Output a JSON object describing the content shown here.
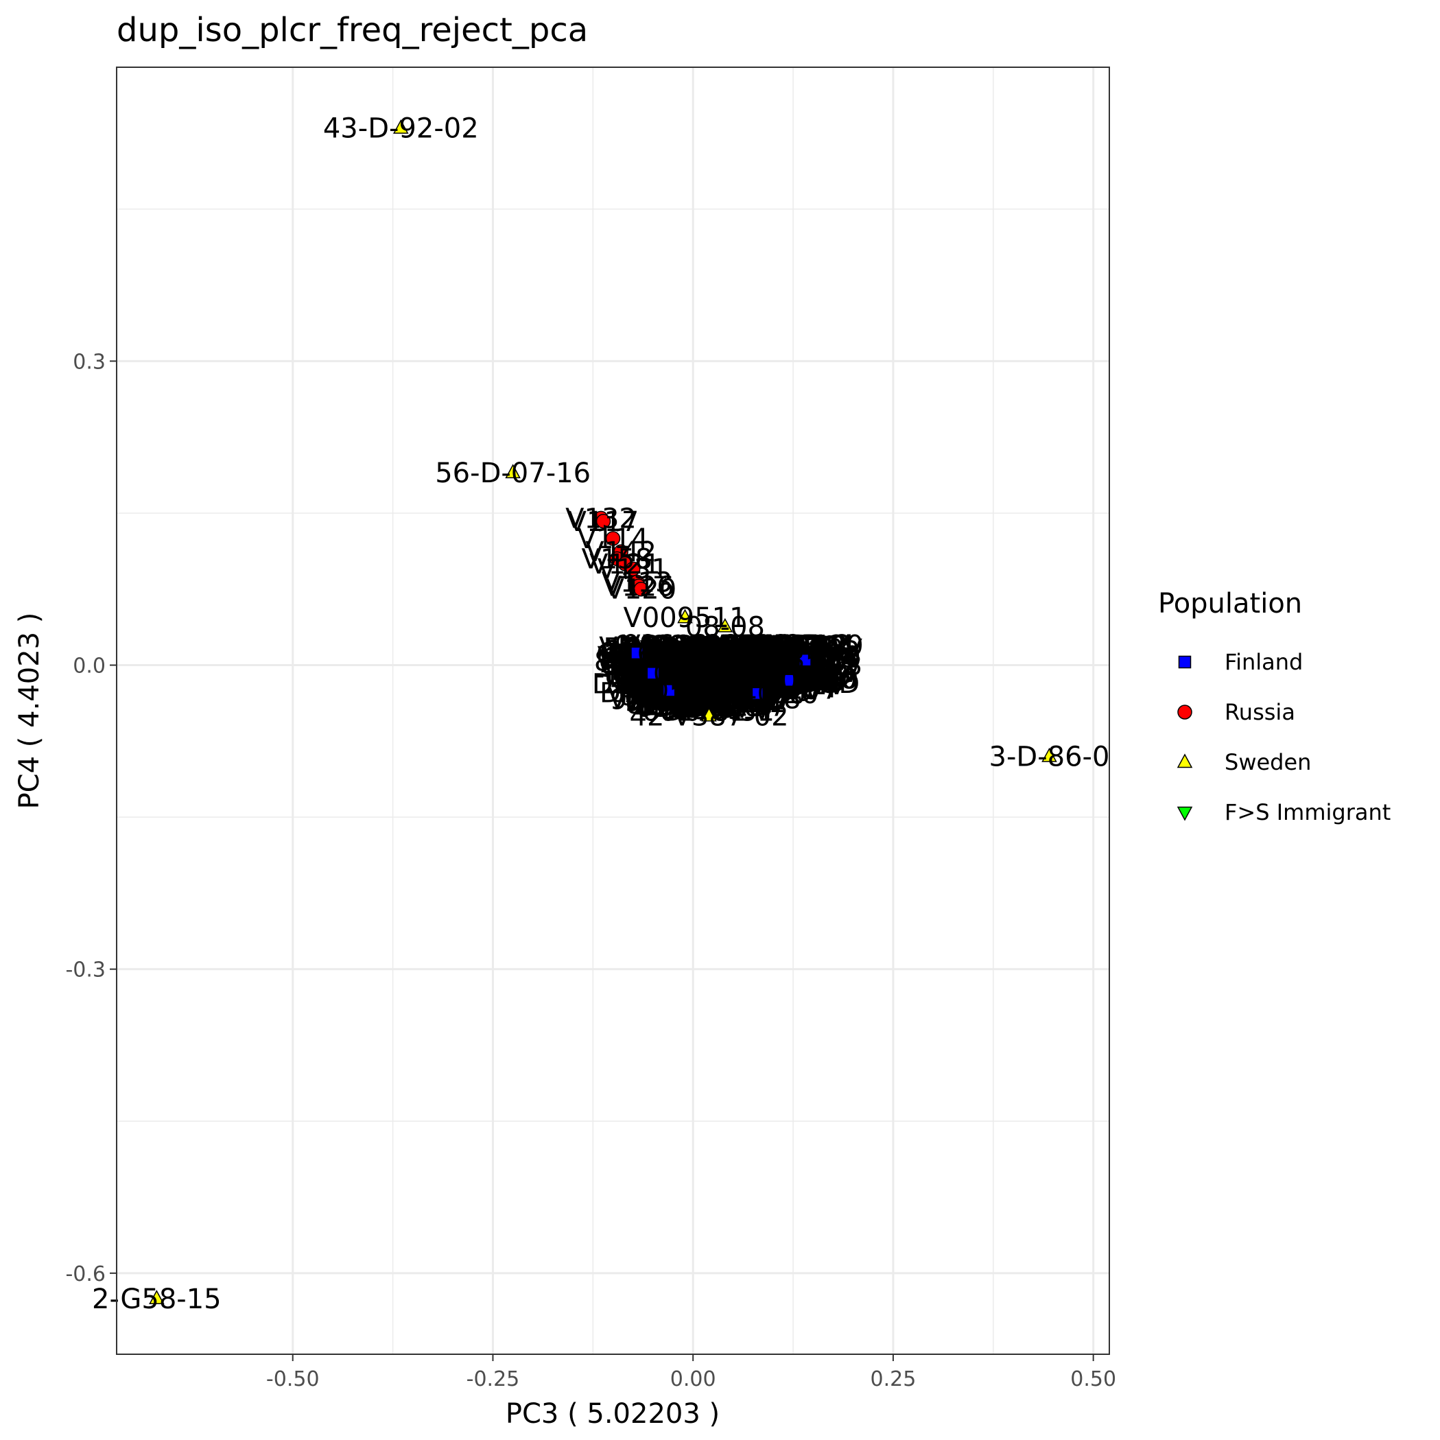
{
  "chart_data": {
    "type": "scatter",
    "title": "dup_iso_plcr_freq_reject_pca",
    "xlabel": "PC3 ( 5.02203 )",
    "ylabel": "PC4 ( 4.4023 )",
    "xlim": [
      -0.72,
      0.52
    ],
    "ylim": [
      -0.68,
      0.59
    ],
    "x_ticks": [
      -0.5,
      -0.25,
      0.0,
      0.25,
      0.5
    ],
    "x_tick_labels": [
      "-0.50",
      "-0.25",
      "0.00",
      "0.25",
      "0.50"
    ],
    "y_ticks": [
      -0.6,
      -0.3,
      0.0,
      0.3
    ],
    "y_tick_labels": [
      "-0.6",
      "-0.3",
      "0.0",
      "0.3"
    ],
    "grid": true,
    "legend": {
      "title": "Population",
      "position": "right",
      "entries": [
        {
          "label": "Finland",
          "shape": "square",
          "color": "#0000ff"
        },
        {
          "label": "Russia",
          "shape": "circle",
          "color": "#ff0000"
        },
        {
          "label": "Sweden",
          "shape": "triangle-up",
          "color": "#ffff00"
        },
        {
          "label": "F>S Immigrant",
          "shape": "triangle-down",
          "color": "#00ff00"
        }
      ]
    },
    "points": [
      {
        "x": -0.365,
        "y": 0.53,
        "population": "Sweden",
        "label": "43-D-92-02"
      },
      {
        "x": -0.225,
        "y": 0.19,
        "population": "Sweden",
        "label": "56-D-07-16"
      },
      {
        "x": 0.445,
        "y": -0.09,
        "population": "Sweden",
        "label": "3-D-86-0"
      },
      {
        "x": -0.67,
        "y": -0.625,
        "population": "Sweden",
        "label": "2-G58-15"
      },
      {
        "x": -0.01,
        "y": 0.047,
        "population": "Sweden",
        "label": "V009511"
      },
      {
        "x": 0.04,
        "y": 0.038,
        "population": "Sweden",
        "label": "08-08"
      },
      {
        "x": -0.115,
        "y": 0.145,
        "population": "Russia",
        "label": "V132"
      },
      {
        "x": -0.112,
        "y": 0.142,
        "population": "Russia",
        "label": "V117"
      },
      {
        "x": -0.1,
        "y": 0.125,
        "population": "Russia",
        "label": "V114"
      },
      {
        "x": -0.09,
        "y": 0.112,
        "population": "Russia",
        "label": "V142"
      },
      {
        "x": -0.095,
        "y": 0.105,
        "population": "Russia",
        "label": "V158"
      },
      {
        "x": -0.085,
        "y": 0.1,
        "population": "Russia",
        "label": "V121"
      },
      {
        "x": -0.075,
        "y": 0.095,
        "population": "Russia",
        "label": "V131"
      },
      {
        "x": -0.07,
        "y": 0.082,
        "population": "Russia",
        "label": "V113"
      },
      {
        "x": -0.068,
        "y": 0.078,
        "population": "Russia",
        "label": "V126"
      },
      {
        "x": -0.065,
        "y": 0.075,
        "population": "Russia",
        "label": "V120"
      },
      {
        "x": -0.07,
        "y": 0.012,
        "population": "Finland",
        "label": "16"
      },
      {
        "x": -0.05,
        "y": -0.008,
        "population": "Finland",
        "label": "10"
      },
      {
        "x": -0.03,
        "y": -0.025,
        "population": "Finland",
        "label": "05"
      },
      {
        "x": 0.02,
        "y": -0.05,
        "population": "Sweden",
        "label": "42-V387-02"
      },
      {
        "x": 0.08,
        "y": -0.028,
        "population": "Finland",
        "label": "40"
      },
      {
        "x": 0.12,
        "y": -0.015,
        "population": "Finland",
        "label": "101"
      },
      {
        "x": 0.14,
        "y": 0.005,
        "population": "Finland",
        "label": "35"
      }
    ]
  }
}
